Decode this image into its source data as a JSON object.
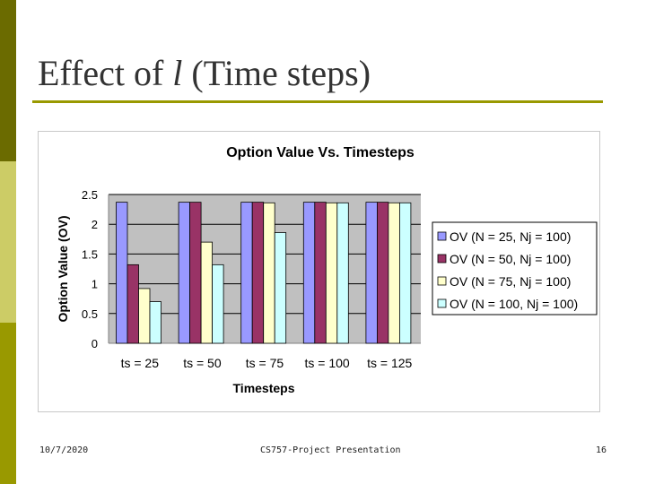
{
  "slide": {
    "title_pre": "Effect of ",
    "title_var": "l",
    "title_post": " (Time steps)",
    "footer_date": "10/7/2020",
    "footer_center": "CS757-Project Presentation",
    "footer_page": "16"
  },
  "chart_data": {
    "type": "bar",
    "title": "Option Value Vs. Timesteps",
    "xlabel": "Timesteps",
    "ylabel": "Option Value (OV)",
    "ylim": [
      0,
      2.5
    ],
    "yticks": [
      "0",
      "0.5",
      "1",
      "1.5",
      "2",
      "2.5"
    ],
    "grid": true,
    "legend_position": "right",
    "categories": [
      "ts = 25",
      "ts = 50",
      "ts = 75",
      "ts = 100",
      "ts = 125"
    ],
    "series": [
      {
        "name": "OV (N = 25, Nj = 100)",
        "color": "#9999ff",
        "values": [
          2.37,
          2.37,
          2.37,
          2.37,
          2.37
        ]
      },
      {
        "name": "OV (N = 50, Nj = 100)",
        "color": "#993366",
        "values": [
          1.32,
          2.37,
          2.37,
          2.37,
          2.37
        ]
      },
      {
        "name": "OV (N = 75, Nj = 100)",
        "color": "#ffffcc",
        "values": [
          0.92,
          1.7,
          2.36,
          2.36,
          2.36
        ]
      },
      {
        "name": "OV (N = 100, Nj = 100)",
        "color": "#ccffff",
        "values": [
          0.7,
          1.32,
          1.86,
          2.36,
          2.36
        ]
      }
    ]
  }
}
